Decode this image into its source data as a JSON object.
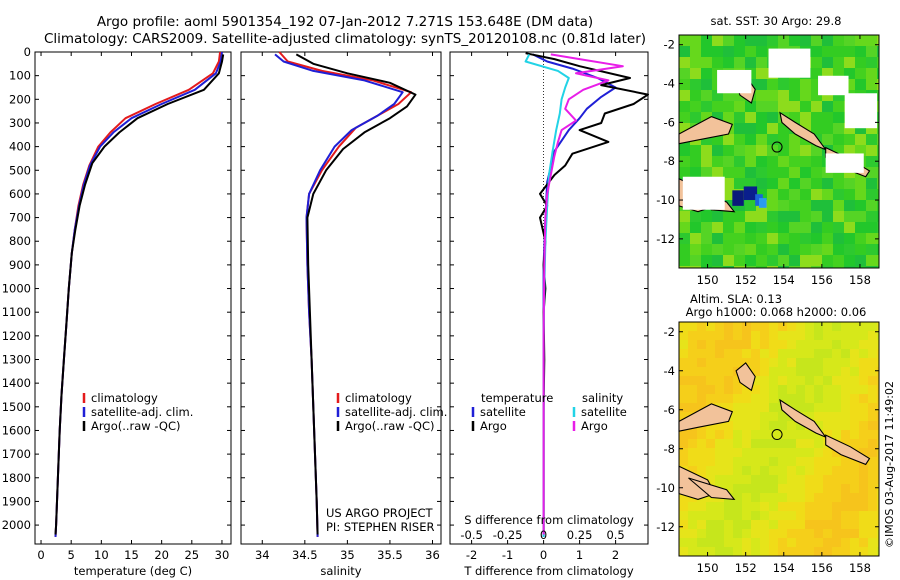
{
  "header": {
    "title": "Argo profile: aoml 5901354_192 07-Jan-2012 7.271S 153.648E (DM data)",
    "subtitle": "Climatology: CARS2009. Satellite-adjusted climatology: synTS_20120108.nc (0.81d later)"
  },
  "colors": {
    "clim": "#e41a1c",
    "sat": "#1f1fd6",
    "argo": "#000000",
    "sal_sat": "#22d3e6",
    "sal_argo": "#e81ee8"
  },
  "chart_data": [
    {
      "type": "line",
      "name": "temperature",
      "xlabel": "temperature (deg C)",
      "ylabel": "",
      "xlim": [
        -1,
        31.5
      ],
      "ylim": [
        2080,
        0
      ],
      "xticks": [
        0,
        5,
        10,
        15,
        20,
        25,
        30
      ],
      "yticks": [
        0,
        100,
        200,
        300,
        400,
        500,
        600,
        700,
        800,
        900,
        1000,
        1100,
        1200,
        1300,
        1400,
        1500,
        1600,
        1700,
        1800,
        1900,
        2000
      ],
      "legend": [
        "climatology",
        "satellite-adj. clim.",
        "Argo(..raw -QC)"
      ],
      "series": [
        {
          "name": "climatology",
          "color": "clim",
          "points": [
            [
              29.7,
              0
            ],
            [
              29.5,
              40
            ],
            [
              28.5,
              90
            ],
            [
              24.5,
              160
            ],
            [
              19,
              220
            ],
            [
              14,
              280
            ],
            [
              11.5,
              340
            ],
            [
              9.5,
              400
            ],
            [
              8,
              480
            ],
            [
              7,
              560
            ],
            [
              6.2,
              650
            ],
            [
              5.6,
              750
            ],
            [
              5.1,
              850
            ],
            [
              4.6,
              1000
            ],
            [
              4.2,
              1150
            ],
            [
              3.8,
              1300
            ],
            [
              3.4,
              1450
            ],
            [
              3.1,
              1600
            ],
            [
              2.8,
              1800
            ],
            [
              2.5,
              2000
            ],
            [
              2.4,
              2050
            ]
          ]
        },
        {
          "name": "satellite-adj. clim.",
          "color": "sat",
          "points": [
            [
              30,
              0
            ],
            [
              29.8,
              40
            ],
            [
              29,
              90
            ],
            [
              25.5,
              160
            ],
            [
              20,
              220
            ],
            [
              15,
              280
            ],
            [
              12,
              340
            ],
            [
              9.8,
              400
            ],
            [
              8.1,
              480
            ],
            [
              7.1,
              560
            ],
            [
              6.3,
              650
            ],
            [
              5.6,
              750
            ],
            [
              5.1,
              850
            ],
            [
              4.6,
              1000
            ],
            [
              4.2,
              1150
            ],
            [
              3.8,
              1300
            ],
            [
              3.4,
              1450
            ],
            [
              3.1,
              1600
            ],
            [
              2.8,
              1800
            ],
            [
              2.5,
              2000
            ],
            [
              2.4,
              2050
            ]
          ]
        },
        {
          "name": "Argo(..raw -QC)",
          "color": "argo",
          "points": [
            [
              30.2,
              10
            ],
            [
              30,
              40
            ],
            [
              29.5,
              90
            ],
            [
              27,
              160
            ],
            [
              21,
              220
            ],
            [
              16,
              280
            ],
            [
              13,
              340
            ],
            [
              10.5,
              400
            ],
            [
              8.5,
              470
            ],
            [
              7.3,
              560
            ],
            [
              6.4,
              650
            ],
            [
              5.7,
              750
            ],
            [
              5.1,
              850
            ],
            [
              4.6,
              1000
            ],
            [
              4.2,
              1150
            ],
            [
              3.8,
              1300
            ],
            [
              3.4,
              1450
            ],
            [
              3.1,
              1600
            ],
            [
              2.8,
              1800
            ],
            [
              2.5,
              2000
            ],
            [
              2.4,
              2040
            ]
          ]
        }
      ]
    },
    {
      "type": "line",
      "name": "salinity",
      "xlabel": "salinity",
      "xlim": [
        33.75,
        36.1
      ],
      "ylim": [
        2080,
        0
      ],
      "xticks": [
        34,
        34.5,
        35,
        35.5,
        36
      ],
      "legend": [
        "climatology",
        "satellite-adj. clim.",
        "Argo(..raw -QC)"
      ],
      "annotation": [
        "US ARGO PROJECT",
        "PI: STEPHEN RISER"
      ],
      "series": [
        {
          "name": "climatology",
          "color": "clim",
          "points": [
            [
              34.2,
              0
            ],
            [
              34.3,
              40
            ],
            [
              34.7,
              80
            ],
            [
              35.3,
              120
            ],
            [
              35.75,
              170
            ],
            [
              35.6,
              220
            ],
            [
              35.4,
              260
            ],
            [
              35.1,
              320
            ],
            [
              34.9,
              400
            ],
            [
              34.7,
              500
            ],
            [
              34.55,
              600
            ],
            [
              34.52,
              700
            ],
            [
              34.53,
              900
            ],
            [
              34.55,
              1100
            ],
            [
              34.58,
              1300
            ],
            [
              34.6,
              1500
            ],
            [
              34.62,
              1700
            ],
            [
              34.64,
              1900
            ],
            [
              34.65,
              2050
            ]
          ]
        },
        {
          "name": "satellite-adj. clim.",
          "color": "sat",
          "points": [
            [
              34.15,
              10
            ],
            [
              34.25,
              40
            ],
            [
              34.6,
              80
            ],
            [
              35.2,
              120
            ],
            [
              35.65,
              170
            ],
            [
              35.55,
              220
            ],
            [
              35.35,
              270
            ],
            [
              35.05,
              330
            ],
            [
              34.85,
              400
            ],
            [
              34.68,
              500
            ],
            [
              34.55,
              600
            ],
            [
              34.52,
              700
            ],
            [
              34.53,
              900
            ],
            [
              34.55,
              1100
            ],
            [
              34.58,
              1300
            ],
            [
              34.6,
              1500
            ],
            [
              34.62,
              1700
            ],
            [
              34.64,
              1900
            ],
            [
              34.65,
              2050
            ]
          ]
        },
        {
          "name": "Argo(..raw -QC)",
          "color": "argo",
          "points": [
            [
              34.4,
              10
            ],
            [
              34.6,
              50
            ],
            [
              35,
              90
            ],
            [
              35.5,
              130
            ],
            [
              35.8,
              180
            ],
            [
              35.7,
              230
            ],
            [
              35.5,
              280
            ],
            [
              35.2,
              340
            ],
            [
              34.95,
              410
            ],
            [
              34.75,
              500
            ],
            [
              34.6,
              600
            ],
            [
              34.53,
              700
            ],
            [
              34.54,
              900
            ],
            [
              34.56,
              1100
            ],
            [
              34.58,
              1300
            ],
            [
              34.6,
              1500
            ],
            [
              34.62,
              1700
            ],
            [
              34.64,
              1900
            ],
            [
              34.65,
              2040
            ]
          ]
        }
      ]
    },
    {
      "type": "line",
      "name": "difference",
      "xlabel": "T difference from climatology",
      "xlabel2": "S difference from climatology",
      "xlim": [
        -2.6,
        2.9
      ],
      "ylim": [
        2080,
        0
      ],
      "xticks": [
        -2,
        -1,
        0,
        1,
        2
      ],
      "sticks": [
        -0.5,
        -0.25,
        0,
        0.25,
        0.5
      ],
      "legend_temp": {
        "header": "temperature",
        "items": [
          "satellite",
          "Argo"
        ]
      },
      "legend_sal": {
        "header": "salinity",
        "items": [
          "satellite",
          "Argo"
        ]
      },
      "series": [
        {
          "name": "T satellite",
          "color": "sat",
          "points": [
            [
              -0.3,
              10
            ],
            [
              0.1,
              40
            ],
            [
              0.8,
              70
            ],
            [
              1.5,
              110
            ],
            [
              2.0,
              150
            ],
            [
              1.6,
              190
            ],
            [
              1.2,
              240
            ],
            [
              1.0,
              280
            ],
            [
              0.7,
              330
            ],
            [
              0.3,
              420
            ],
            [
              0.1,
              550
            ],
            [
              0.05,
              700
            ],
            [
              0,
              900
            ],
            [
              0,
              1200
            ],
            [
              0,
              1600
            ],
            [
              0,
              2050
            ]
          ]
        },
        {
          "name": "T Argo",
          "color": "argo",
          "points": [
            [
              -0.5,
              5
            ],
            [
              0.3,
              30
            ],
            [
              1.0,
              60
            ],
            [
              2.4,
              110
            ],
            [
              1.6,
              140
            ],
            [
              2.9,
              180
            ],
            [
              2.5,
              220
            ],
            [
              1.7,
              260
            ],
            [
              1.6,
              300
            ],
            [
              1.0,
              330
            ],
            [
              1.8,
              380
            ],
            [
              0.8,
              430
            ],
            [
              0.6,
              480
            ],
            [
              0.3,
              520
            ],
            [
              -0.1,
              600
            ],
            [
              0.1,
              650
            ],
            [
              -0.1,
              700
            ],
            [
              0.05,
              800
            ],
            [
              0,
              900
            ],
            [
              0.05,
              1000
            ],
            [
              0,
              1100
            ],
            [
              0.02,
              1300
            ],
            [
              0,
              1500
            ],
            [
              0,
              1800
            ],
            [
              0,
              2040
            ]
          ]
        },
        {
          "name": "S satellite",
          "color": "sal_sat",
          "points": [
            [
              -0.4,
              10
            ],
            [
              -0.5,
              40
            ],
            [
              0.4,
              80
            ],
            [
              0.7,
              110
            ],
            [
              0.6,
              150
            ],
            [
              0.5,
              200
            ],
            [
              0.45,
              260
            ],
            [
              0.35,
              330
            ],
            [
              0.25,
              420
            ],
            [
              0.15,
              520
            ],
            [
              0.1,
              650
            ],
            [
              0.05,
              800
            ],
            [
              0.02,
              1000
            ],
            [
              0,
              1200
            ],
            [
              0,
              1600
            ],
            [
              0,
              2050
            ]
          ]
        },
        {
          "name": "S Argo",
          "color": "sal_argo",
          "points": [
            [
              0.2,
              10
            ],
            [
              1.0,
              30
            ],
            [
              2.2,
              60
            ],
            [
              0.9,
              90
            ],
            [
              1.8,
              120
            ],
            [
              1.1,
              160
            ],
            [
              0.7,
              200
            ],
            [
              0.6,
              240
            ],
            [
              0.9,
              290
            ],
            [
              0.5,
              330
            ],
            [
              0.4,
              380
            ],
            [
              0.3,
              440
            ],
            [
              0.2,
              520
            ],
            [
              0.1,
              600
            ],
            [
              0.05,
              700
            ],
            [
              0.02,
              900
            ],
            [
              0,
              1200
            ],
            [
              0,
              2040
            ]
          ]
        }
      ]
    },
    {
      "type": "heatmap",
      "name": "sst-map",
      "title": "sat. SST: 30  Argo: 29.8",
      "xlim": [
        148.5,
        159
      ],
      "ylim": [
        -13.5,
        -1.5
      ],
      "xticks": [
        150,
        152,
        154,
        156,
        158
      ],
      "yticks": [
        -2,
        -4,
        -6,
        -8,
        -10,
        -12
      ],
      "argo_position": [
        153.648,
        -7.271
      ]
    },
    {
      "type": "heatmap",
      "name": "sla-map",
      "title": "Altim. SLA: 0.13",
      "title2": "Argo h1000: 0.068  h2000: 0.06",
      "xlim": [
        148.5,
        159
      ],
      "ylim": [
        -13.5,
        -1.5
      ],
      "xticks": [
        150,
        152,
        154,
        156,
        158
      ],
      "yticks": [
        -2,
        -4,
        -6,
        -8,
        -10,
        -12
      ],
      "argo_position": [
        153.648,
        -7.271
      ]
    }
  ],
  "footer": {
    "stamp": "©IMOS 03-Aug-2017 11:49:02"
  }
}
